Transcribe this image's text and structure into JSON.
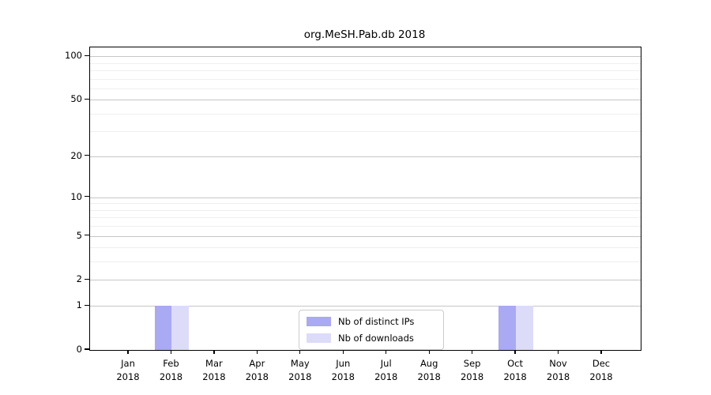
{
  "title": "org.MeSH.Pab.db 2018",
  "chart_data": {
    "type": "bar",
    "title": "org.MeSH.Pab.db 2018",
    "xlabel": "",
    "ylabel": "",
    "months": [
      "Jan",
      "Feb",
      "Mar",
      "Apr",
      "May",
      "Jun",
      "Jul",
      "Aug",
      "Sep",
      "Oct",
      "Nov",
      "Dec"
    ],
    "year": "2018",
    "series": [
      {
        "name": "Nb of distinct IPs",
        "color": "#a9a9f4",
        "values": [
          0,
          1,
          0,
          0,
          0,
          0,
          0,
          0,
          0,
          1,
          0,
          0
        ]
      },
      {
        "name": "Nb of downloads",
        "color": "#dcdcf8",
        "values": [
          0,
          1,
          0,
          0,
          0,
          0,
          0,
          0,
          0,
          1,
          0,
          0
        ]
      }
    ],
    "y_scale": "log1p",
    "y_ticks": [
      0,
      1,
      2,
      5,
      10,
      20,
      50,
      100
    ],
    "y_minor_ticks": [
      3,
      4,
      6,
      7,
      8,
      9,
      30,
      40,
      60,
      70,
      80,
      90
    ],
    "ylim": [
      0,
      115
    ],
    "grid": "horizontal",
    "legend_position": "lower center"
  }
}
